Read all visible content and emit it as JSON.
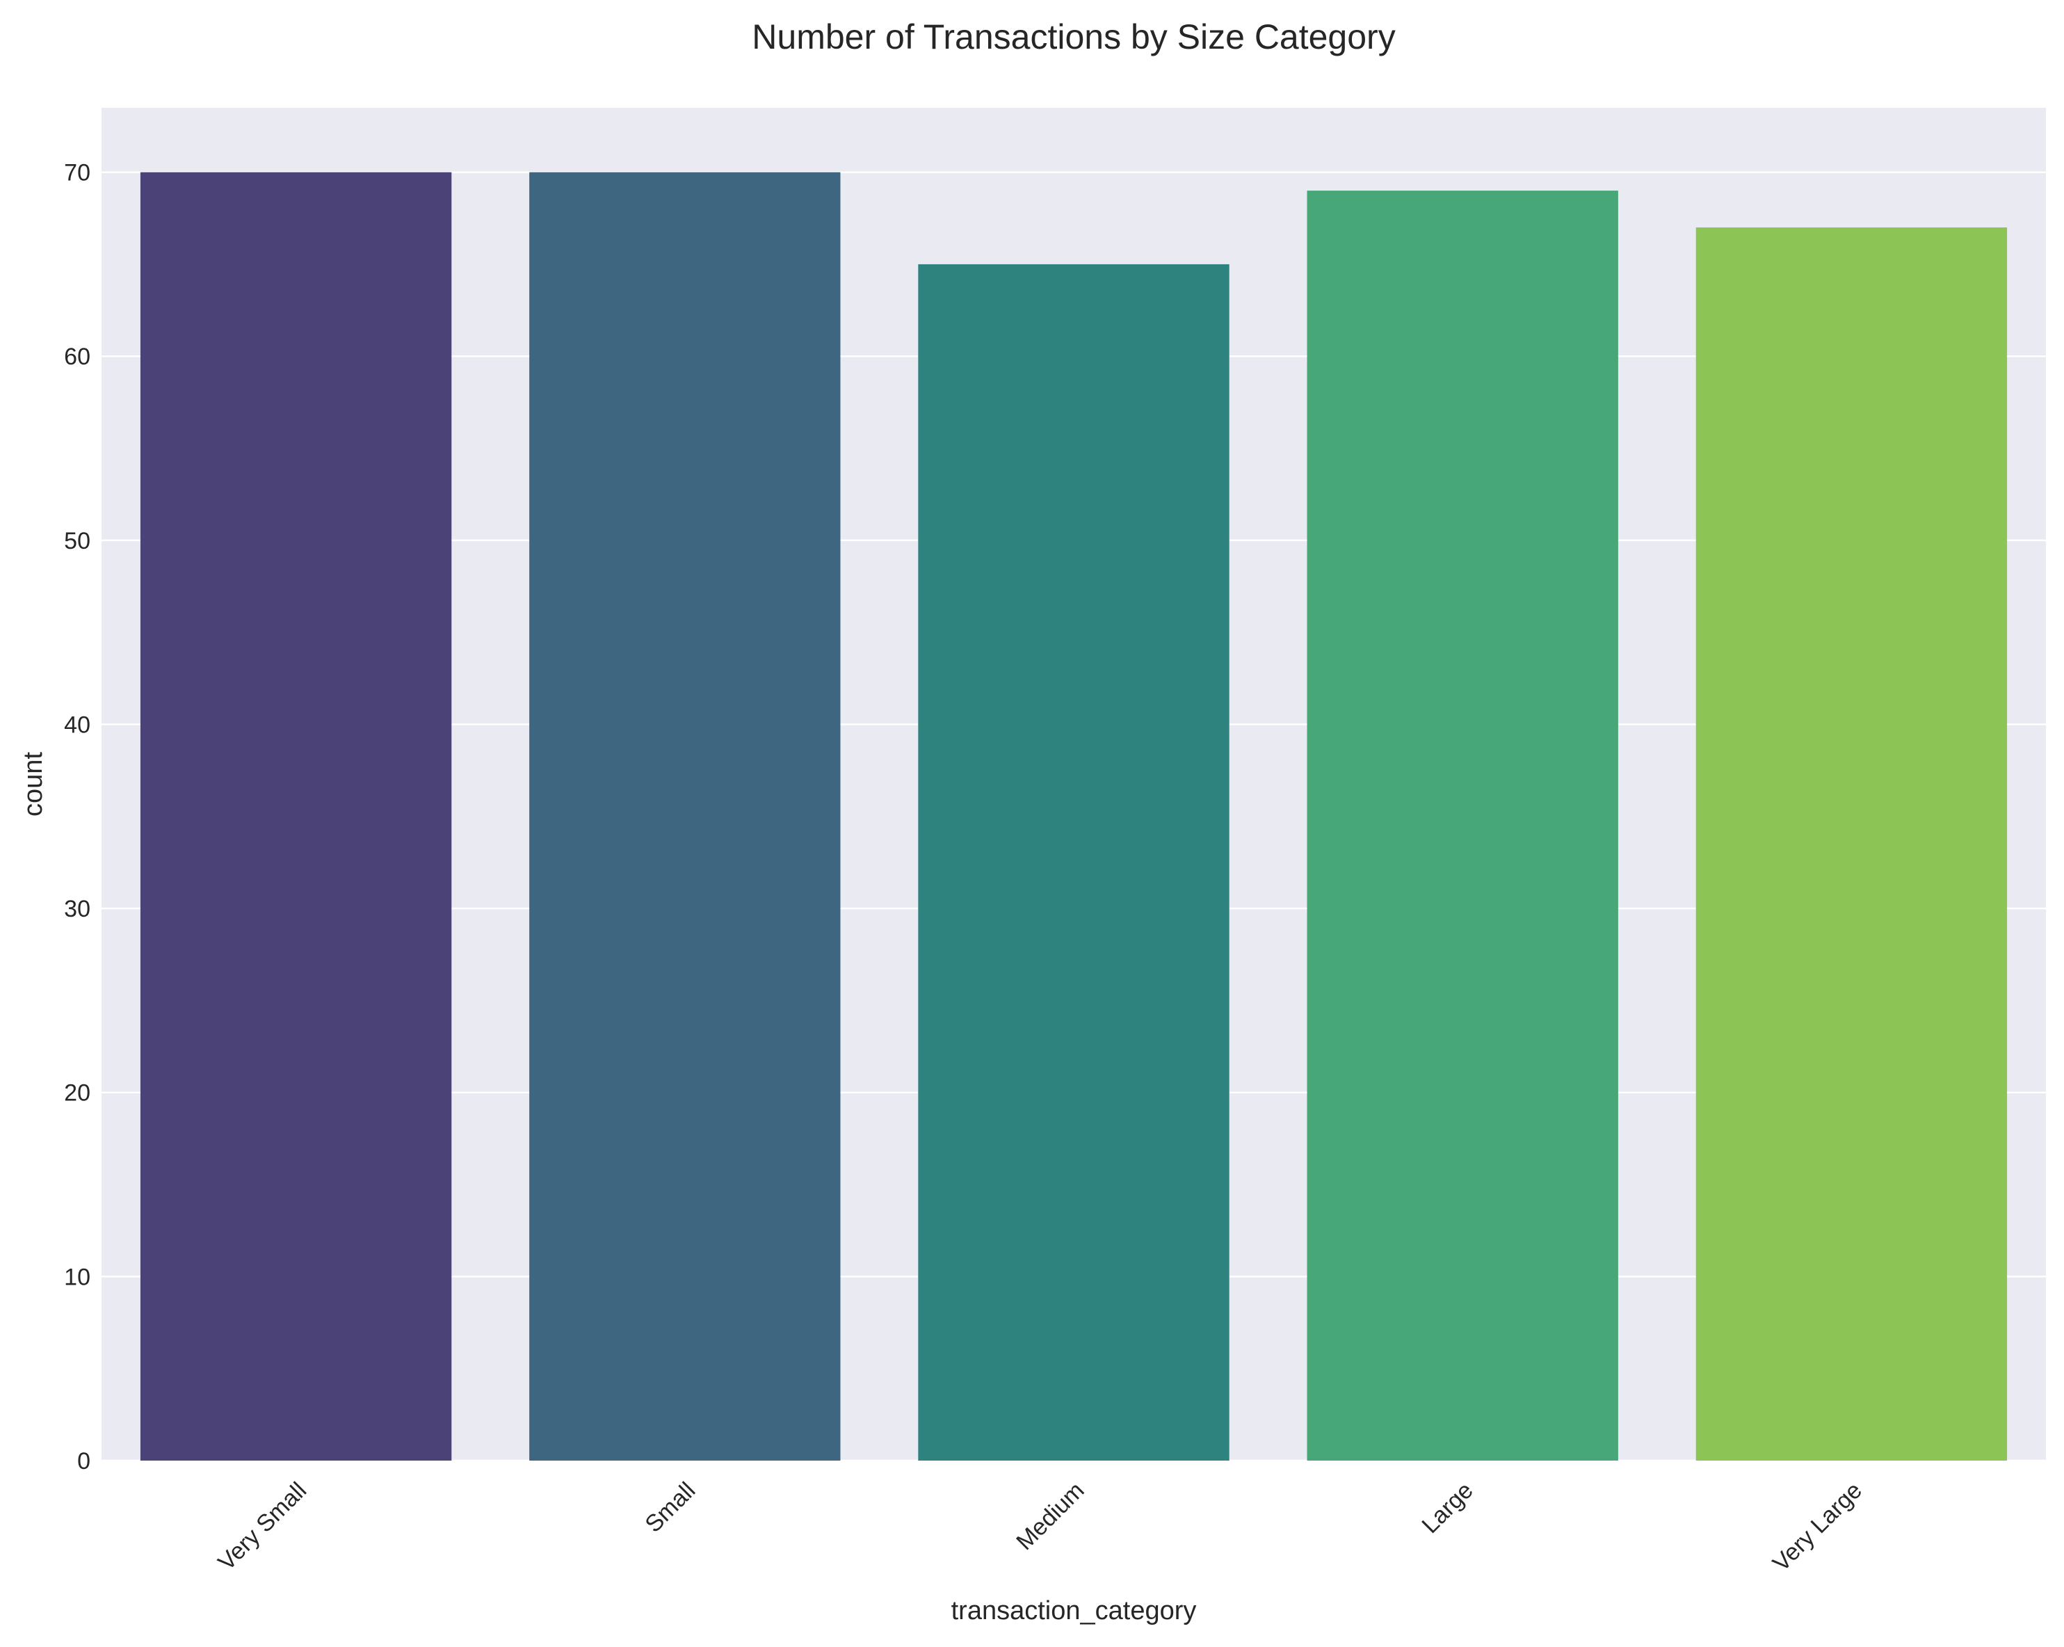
{
  "chart_data": {
    "type": "bar",
    "title": "Number of Transactions by Size Category",
    "xlabel": "transaction_category",
    "ylabel": "count",
    "categories": [
      "Very Small",
      "Small",
      "Medium",
      "Large",
      "Very Large"
    ],
    "values": [
      70,
      70,
      65,
      69,
      67
    ],
    "ylim": [
      0,
      73.5
    ],
    "yticks": [
      0,
      10,
      20,
      30,
      40,
      50,
      60,
      70
    ],
    "ytick_labels": [
      "0",
      "10",
      "20",
      "30",
      "40",
      "50",
      "60",
      "70"
    ],
    "xtick_rotation_deg": 45,
    "grid": true,
    "legend": "none",
    "colors": {
      "bars": [
        "#4b4278",
        "#3f6680",
        "#2e837e",
        "#47a779",
        "#8dc456"
      ],
      "axes_background": "#eaeaf2",
      "grid": "#ffffff"
    }
  }
}
